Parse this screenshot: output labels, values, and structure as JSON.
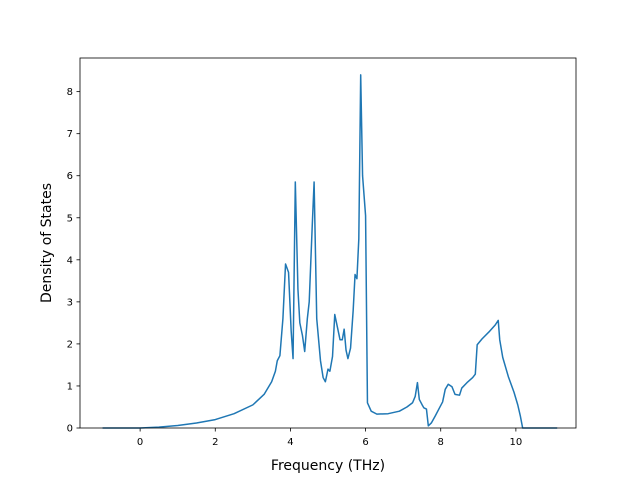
{
  "chart_data": {
    "type": "line",
    "title": "",
    "xlabel": "Frequency (THz)",
    "ylabel": "Density of States",
    "xlim": [
      -1.6,
      11.6
    ],
    "ylim": [
      0,
      8.8
    ],
    "xticks": [
      0,
      2,
      4,
      6,
      8,
      10
    ],
    "yticks": [
      0,
      1,
      2,
      3,
      4,
      5,
      6,
      7,
      8
    ],
    "grid": false,
    "legend": "none",
    "series": [
      {
        "color": "#1f77b4",
        "points": [
          [
            -1.0,
            0.0
          ],
          [
            0.0,
            0.0
          ],
          [
            0.5,
            0.02
          ],
          [
            1.0,
            0.06
          ],
          [
            1.5,
            0.12
          ],
          [
            2.0,
            0.2
          ],
          [
            2.5,
            0.34
          ],
          [
            3.0,
            0.55
          ],
          [
            3.3,
            0.8
          ],
          [
            3.5,
            1.1
          ],
          [
            3.6,
            1.35
          ],
          [
            3.65,
            1.6
          ],
          [
            3.72,
            1.72
          ],
          [
            3.8,
            2.6
          ],
          [
            3.87,
            3.9
          ],
          [
            3.95,
            3.7
          ],
          [
            4.02,
            2.3
          ],
          [
            4.07,
            1.65
          ],
          [
            4.13,
            5.85
          ],
          [
            4.2,
            3.3
          ],
          [
            4.25,
            2.5
          ],
          [
            4.32,
            2.2
          ],
          [
            4.38,
            1.82
          ],
          [
            4.45,
            2.6
          ],
          [
            4.5,
            3.0
          ],
          [
            4.58,
            4.8
          ],
          [
            4.63,
            5.85
          ],
          [
            4.7,
            2.6
          ],
          [
            4.8,
            1.6
          ],
          [
            4.87,
            1.2
          ],
          [
            4.93,
            1.1
          ],
          [
            5.0,
            1.4
          ],
          [
            5.05,
            1.35
          ],
          [
            5.12,
            1.7
          ],
          [
            5.18,
            2.7
          ],
          [
            5.25,
            2.4
          ],
          [
            5.32,
            2.1
          ],
          [
            5.38,
            2.1
          ],
          [
            5.43,
            2.35
          ],
          [
            5.48,
            1.85
          ],
          [
            5.53,
            1.65
          ],
          [
            5.6,
            1.9
          ],
          [
            5.67,
            2.8
          ],
          [
            5.72,
            3.65
          ],
          [
            5.77,
            3.55
          ],
          [
            5.82,
            4.5
          ],
          [
            5.87,
            8.4
          ],
          [
            5.92,
            6.0
          ],
          [
            6.0,
            5.05
          ],
          [
            6.05,
            0.6
          ],
          [
            6.15,
            0.4
          ],
          [
            6.3,
            0.33
          ],
          [
            6.6,
            0.34
          ],
          [
            6.9,
            0.4
          ],
          [
            7.1,
            0.5
          ],
          [
            7.25,
            0.6
          ],
          [
            7.32,
            0.75
          ],
          [
            7.38,
            1.08
          ],
          [
            7.43,
            0.68
          ],
          [
            7.5,
            0.56
          ],
          [
            7.55,
            0.48
          ],
          [
            7.62,
            0.45
          ],
          [
            7.67,
            0.05
          ],
          [
            7.75,
            0.12
          ],
          [
            7.85,
            0.28
          ],
          [
            7.95,
            0.45
          ],
          [
            8.05,
            0.62
          ],
          [
            8.12,
            0.92
          ],
          [
            8.2,
            1.04
          ],
          [
            8.3,
            0.98
          ],
          [
            8.38,
            0.8
          ],
          [
            8.5,
            0.78
          ],
          [
            8.56,
            0.95
          ],
          [
            8.7,
            1.08
          ],
          [
            8.85,
            1.2
          ],
          [
            8.92,
            1.28
          ],
          [
            8.97,
            1.98
          ],
          [
            9.1,
            2.12
          ],
          [
            9.3,
            2.3
          ],
          [
            9.45,
            2.45
          ],
          [
            9.53,
            2.56
          ],
          [
            9.57,
            2.1
          ],
          [
            9.65,
            1.68
          ],
          [
            9.8,
            1.22
          ],
          [
            9.95,
            0.85
          ],
          [
            10.05,
            0.55
          ],
          [
            10.12,
            0.28
          ],
          [
            10.18,
            0.0
          ],
          [
            10.5,
            0.0
          ],
          [
            11.1,
            0.0
          ]
        ]
      }
    ]
  }
}
